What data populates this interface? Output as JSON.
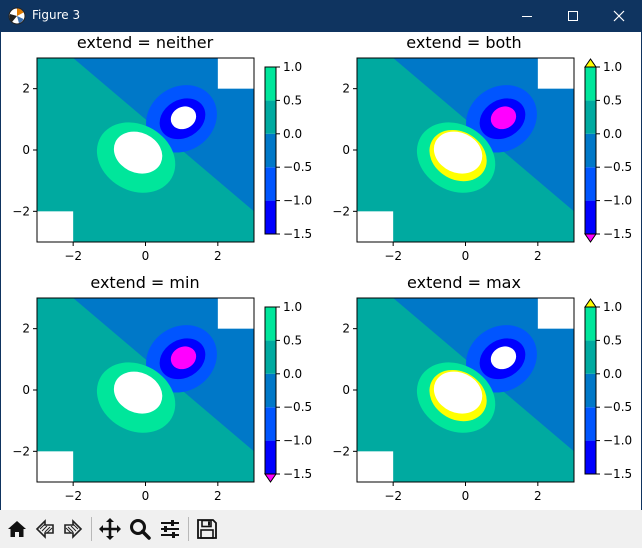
{
  "window": {
    "title": "Figure 3"
  },
  "toolbar": {
    "buttons": [
      {
        "name": "home-button",
        "icon": "home-icon"
      },
      {
        "name": "back-button",
        "icon": "back-arrow-icon"
      },
      {
        "name": "forward-button",
        "icon": "forward-arrow-icon"
      },
      {
        "name": "pan-button",
        "icon": "move-icon"
      },
      {
        "name": "zoom-button",
        "icon": "magnifier-icon"
      },
      {
        "name": "configure-subplots-button",
        "icon": "sliders-icon"
      },
      {
        "name": "save-button",
        "icon": "floppy-disk-icon"
      }
    ]
  },
  "colors": {
    "level_bands": [
      "#0000ff",
      "#0055ff",
      "#0078c8",
      "#00aaa0",
      "#00e69b"
    ],
    "under": "#ff00ff",
    "over": "#ffff00",
    "title_bar": "#0f3460"
  },
  "chart_data": [
    {
      "type": "filled-contour",
      "title": "extend = neither",
      "extend": "neither",
      "xticks": [
        "−2",
        "0",
        "2"
      ],
      "yticks": [
        "2",
        "0",
        "−2"
      ],
      "xlim": [
        -3,
        3
      ],
      "ylim": [
        -3,
        3
      ],
      "colorbar_ticks": [
        "1.0",
        "0.5",
        "0.0",
        "−0.5",
        "−1.0",
        "−1.5"
      ],
      "levels": [
        -1.5,
        -1.0,
        -0.5,
        0.0,
        0.5,
        1.0
      ]
    },
    {
      "type": "filled-contour",
      "title": "extend = both",
      "extend": "both",
      "xticks": [
        "−2",
        "0",
        "2"
      ],
      "yticks": [
        "2",
        "0",
        "−2"
      ],
      "xlim": [
        -3,
        3
      ],
      "ylim": [
        -3,
        3
      ],
      "colorbar_ticks": [
        "1.0",
        "0.5",
        "0.0",
        "−0.5",
        "−1.0",
        "−1.5"
      ],
      "levels": [
        -1.5,
        -1.0,
        -0.5,
        0.0,
        0.5,
        1.0
      ]
    },
    {
      "type": "filled-contour",
      "title": "extend = min",
      "extend": "min",
      "xticks": [
        "−2",
        "0",
        "2"
      ],
      "yticks": [
        "2",
        "0",
        "−2"
      ],
      "xlim": [
        -3,
        3
      ],
      "ylim": [
        -3,
        3
      ],
      "colorbar_ticks": [
        "1.0",
        "0.5",
        "0.0",
        "−0.5",
        "−1.0",
        "−1.5"
      ],
      "levels": [
        -1.5,
        -1.0,
        -0.5,
        0.0,
        0.5,
        1.0
      ]
    },
    {
      "type": "filled-contour",
      "title": "extend = max",
      "extend": "max",
      "xticks": [
        "−2",
        "0",
        "2"
      ],
      "yticks": [
        "2",
        "0",
        "−2"
      ],
      "xlim": [
        -3,
        3
      ],
      "ylim": [
        -3,
        3
      ],
      "colorbar_ticks": [
        "1.0",
        "0.5",
        "0.0",
        "−0.5",
        "−1.0",
        "−1.5"
      ],
      "levels": [
        -1.5,
        -1.0,
        -0.5,
        0.0,
        0.5,
        1.0
      ]
    }
  ]
}
